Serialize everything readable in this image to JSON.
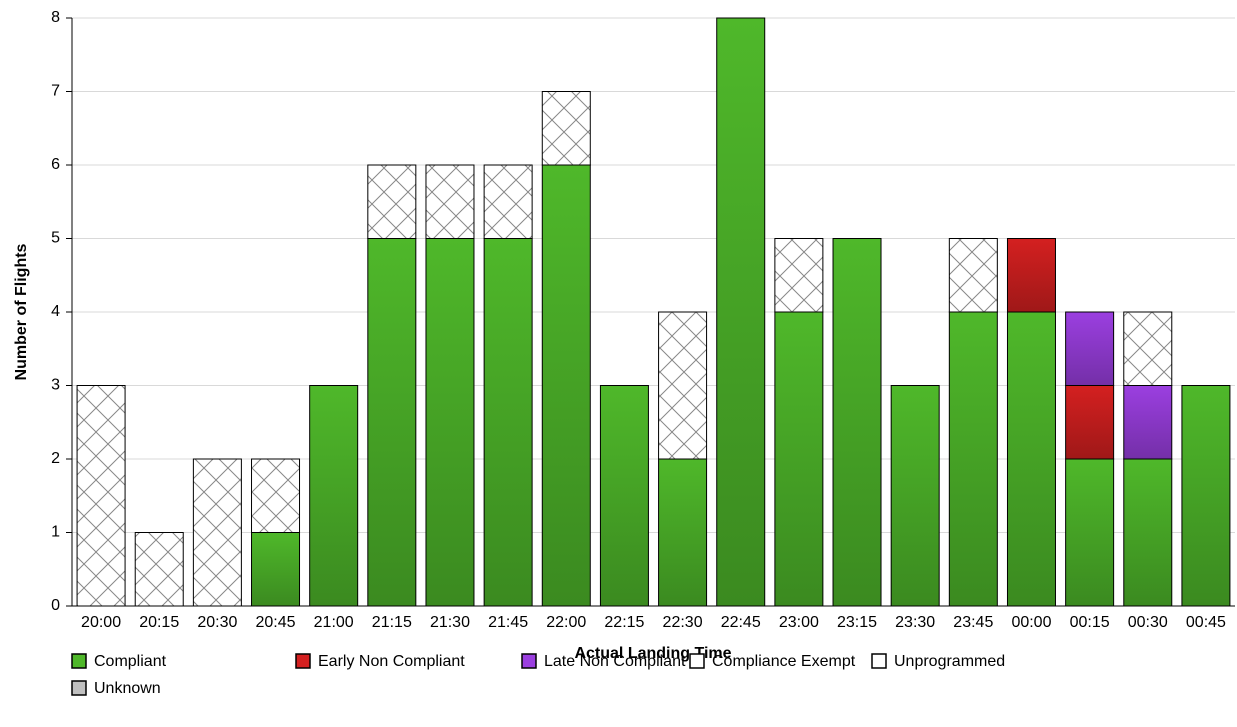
{
  "chart_data": {
    "type": "stacked-bar",
    "y_label": "Number of Flights",
    "x_label": "Actual Landing Time",
    "categories": [
      "20:00",
      "20:15",
      "20:30",
      "20:45",
      "21:00",
      "21:15",
      "21:30",
      "21:45",
      "22:00",
      "22:15",
      "22:30",
      "22:45",
      "23:00",
      "23:15",
      "23:30",
      "23:45",
      "00:00",
      "00:15",
      "00:30",
      "00:45"
    ],
    "series": [
      {
        "name": "Compliant",
        "color": "#4fb82a",
        "values": [
          0,
          0,
          0,
          1,
          3,
          5,
          5,
          5,
          6,
          3,
          2,
          8,
          4,
          5,
          3,
          4,
          4,
          2,
          2,
          3
        ]
      },
      {
        "name": "Early Non Compliant",
        "color": "#d42020",
        "values": [
          0,
          0,
          0,
          0,
          0,
          0,
          0,
          0,
          0,
          0,
          0,
          0,
          0,
          0,
          0,
          0,
          1,
          1,
          0,
          0
        ]
      },
      {
        "name": "Late Non Compliant",
        "color": "#9b3fe0",
        "values": [
          0,
          0,
          0,
          0,
          0,
          0,
          0,
          0,
          0,
          0,
          0,
          0,
          0,
          0,
          0,
          0,
          0,
          1,
          1,
          0
        ]
      },
      {
        "name": "Compliance Exempt",
        "color": "#ffffff",
        "pattern": "cross-hatch",
        "values": [
          3,
          1,
          2,
          1,
          0,
          1,
          1,
          1,
          1,
          0,
          2,
          0,
          1,
          0,
          0,
          1,
          0,
          0,
          1,
          0
        ]
      },
      {
        "name": "Unprogrammed",
        "color": "#ffffff",
        "values": [
          0,
          0,
          0,
          0,
          0,
          0,
          0,
          0,
          0,
          0,
          0,
          0,
          0,
          0,
          0,
          0,
          0,
          0,
          0,
          0
        ]
      },
      {
        "name": "Unknown",
        "color": "#c0c0c0",
        "values": [
          0,
          0,
          0,
          0,
          0,
          0,
          0,
          0,
          0,
          0,
          0,
          0,
          0,
          0,
          0,
          0,
          0,
          0,
          0,
          0
        ]
      }
    ],
    "ylim": [
      0,
      8
    ],
    "yticks": [
      0,
      1,
      2,
      3,
      4,
      5,
      6,
      7,
      8
    ],
    "grid": true
  }
}
